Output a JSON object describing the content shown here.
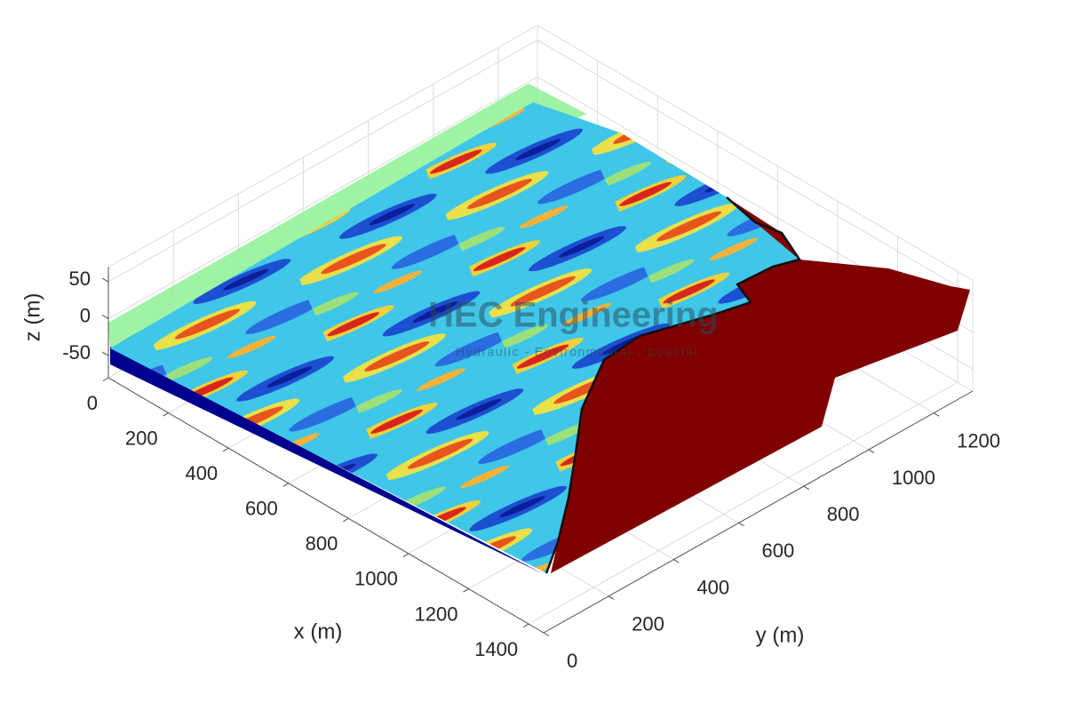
{
  "chart_data": {
    "type": "surface3d",
    "xlabel": "x (m)",
    "ylabel": "y (m)",
    "zlabel": "z (m)",
    "xlim": [
      0,
      1450
    ],
    "ylim": [
      0,
      1320
    ],
    "zlim": [
      -80,
      70
    ],
    "xticks": [
      0,
      200,
      400,
      600,
      800,
      1000,
      1200,
      1400
    ],
    "yticks": [
      0,
      200,
      400,
      600,
      800,
      1000,
      1200
    ],
    "zticks": [
      -50,
      0,
      50
    ],
    "grid": true
  },
  "watermark": {
    "title": "HEC Engineering",
    "subtitle": "Hydraulic - Environmental - Coastal"
  }
}
